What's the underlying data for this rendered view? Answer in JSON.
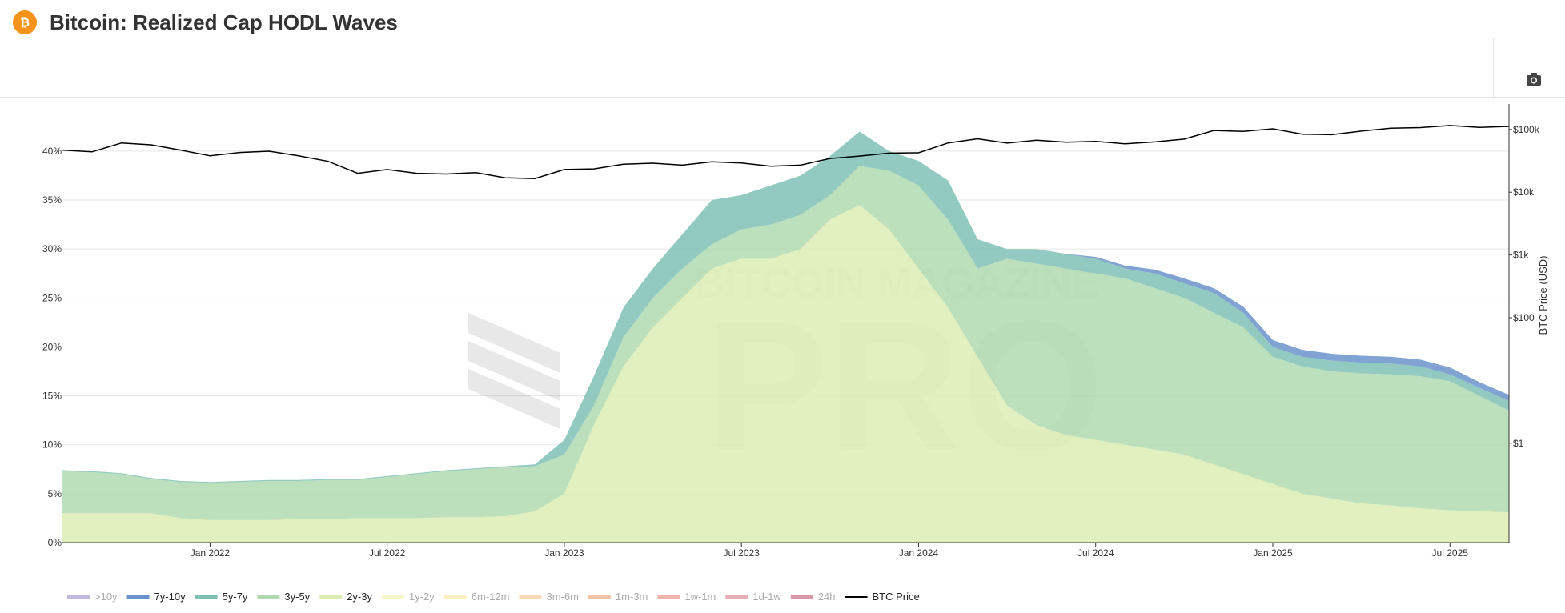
{
  "chart_data": {
    "type": "stacked-area",
    "title": "Bitcoin: Realized Cap HODL Waves",
    "y2_label": "BTC Price (USD)",
    "watermark": [
      "BITCOIN MAGAZINE",
      "PRO"
    ],
    "x": [
      "2021-08",
      "2021-09",
      "2021-10",
      "2021-11",
      "2021-12",
      "2022-01",
      "2022-02",
      "2022-03",
      "2022-04",
      "2022-05",
      "2022-06",
      "2022-07",
      "2022-08",
      "2022-09",
      "2022-10",
      "2022-11",
      "2022-12",
      "2023-01",
      "2023-02",
      "2023-03",
      "2023-04",
      "2023-05",
      "2023-06",
      "2023-07",
      "2023-08",
      "2023-09",
      "2023-10",
      "2023-11",
      "2023-12",
      "2024-01",
      "2024-02",
      "2024-03",
      "2024-04",
      "2024-05",
      "2024-06",
      "2024-07",
      "2024-08",
      "2024-09",
      "2024-10",
      "2024-11",
      "2024-12",
      "2025-01",
      "2025-02",
      "2025-03",
      "2025-04",
      "2025-05",
      "2025-06",
      "2025-07",
      "2025-08",
      "2025-09"
    ],
    "xlim": [
      "2021-08",
      "2025-09"
    ],
    "xticks": [
      {
        "value": "2022-01",
        "label": "Jan 2022"
      },
      {
        "value": "2022-07",
        "label": "Jul 2022"
      },
      {
        "value": "2023-01",
        "label": "Jan 2023"
      },
      {
        "value": "2023-07",
        "label": "Jul 2023"
      },
      {
        "value": "2024-01",
        "label": "Jan 2024"
      },
      {
        "value": "2024-07",
        "label": "Jul 2024"
      },
      {
        "value": "2025-01",
        "label": "Jan 2025"
      },
      {
        "value": "2025-07",
        "label": "Jul 2025"
      }
    ],
    "ylim": [
      0,
      44
    ],
    "yticks": [
      {
        "value": 0,
        "label": "0%"
      },
      {
        "value": 5,
        "label": "5%"
      },
      {
        "value": 10,
        "label": "10%"
      },
      {
        "value": 15,
        "label": "15%"
      },
      {
        "value": 20,
        "label": "20%"
      },
      {
        "value": 25,
        "label": "25%"
      },
      {
        "value": 30,
        "label": "30%"
      },
      {
        "value": 35,
        "label": "35%"
      },
      {
        "value": 40,
        "label": "40%"
      }
    ],
    "y2lim": [
      0.026,
      190000
    ],
    "y2_log": true,
    "y2ticks": [
      {
        "value": 1,
        "label": "$1"
      },
      {
        "value": 100,
        "label": "$100"
      },
      {
        "value": 1000,
        "label": "$1k"
      },
      {
        "value": 10000,
        "label": "$10k"
      },
      {
        "value": 100000,
        "label": "$100k"
      }
    ],
    "grid": true,
    "legend": "bottom",
    "series": [
      {
        "name": ">10y",
        "color": "#c3b9de",
        "visible": false
      },
      {
        "name": "7y-10y",
        "color": "#6a93cb",
        "values": [
          0,
          0,
          0,
          0,
          0,
          0,
          0,
          0,
          0,
          0,
          0,
          0,
          0,
          0,
          0,
          0,
          0,
          0,
          0,
          0,
          0,
          0,
          0,
          0,
          0,
          0,
          0,
          0,
          0,
          0,
          0,
          0,
          0,
          0,
          0,
          0.2,
          0.3,
          0.4,
          0.5,
          0.5,
          0.6,
          0.7,
          0.7,
          0.7,
          0.7,
          0.7,
          0.7,
          0.7,
          0.6,
          0.6
        ]
      },
      {
        "name": "5y-7y",
        "color": "#7fc0b6",
        "values": [
          0.1,
          0.1,
          0.1,
          0.1,
          0.1,
          0.1,
          0.1,
          0.1,
          0.1,
          0.1,
          0.1,
          0.1,
          0.1,
          0.1,
          0.1,
          0.1,
          0.2,
          1.5,
          3,
          3,
          3,
          3.5,
          4.5,
          3.5,
          4,
          4,
          4,
          3.5,
          2,
          2.5,
          4,
          3,
          1,
          1.5,
          1.5,
          1.5,
          1,
          1.5,
          1.5,
          2,
          1.5,
          1,
          1,
          1.1,
          1.1,
          1.1,
          1,
          0.7,
          0.8,
          1
        ]
      },
      {
        "name": "3y-5y",
        "color": "#b0d9b0",
        "values": [
          4.3,
          4.2,
          4,
          3.5,
          3.7,
          3.8,
          3.9,
          4,
          3.9,
          4,
          3.9,
          4.2,
          4.5,
          4.7,
          4.9,
          5,
          4.6,
          4,
          2,
          3,
          3,
          3,
          2.5,
          3,
          3.5,
          3.5,
          2.5,
          4,
          6,
          8.5,
          9,
          9,
          15,
          16.5,
          17,
          17,
          17,
          16.5,
          16,
          15.5,
          15,
          13,
          13,
          13,
          13.3,
          13.4,
          13.5,
          13.2,
          11.8,
          10.4
        ]
      },
      {
        "name": "2y-3y",
        "color": "#dcedb3",
        "values": [
          3,
          3,
          3,
          3,
          2.5,
          2.3,
          2.3,
          2.3,
          2.4,
          2.4,
          2.5,
          2.5,
          2.5,
          2.6,
          2.6,
          2.7,
          3.2,
          5,
          12,
          18,
          22,
          25,
          28,
          29,
          29,
          30,
          33,
          34.5,
          32,
          28,
          24,
          19,
          14,
          12,
          11,
          10.5,
          10,
          9.5,
          9,
          8,
          7,
          6,
          5,
          4.5,
          4,
          3.8,
          3.5,
          3.3,
          3.2,
          3.1
        ]
      },
      {
        "name": "1y-2y",
        "color": "#f6f6c6",
        "visible": false
      },
      {
        "name": "6m-12m",
        "color": "#fbefc2",
        "visible": false
      },
      {
        "name": "3m-6m",
        "color": "#fad8b6",
        "visible": false
      },
      {
        "name": "1m-3m",
        "color": "#f7c3a6",
        "visible": false
      },
      {
        "name": "1w-1m",
        "color": "#f2b5ae",
        "visible": false
      },
      {
        "name": "1d-1w",
        "color": "#e6adb6",
        "visible": false
      },
      {
        "name": "24h",
        "color": "#d99aa8",
        "visible": false
      },
      {
        "name": "BTC Price",
        "color": "#000000",
        "axis": "y2",
        "values": [
          47000,
          44000,
          61000,
          57000,
          47000,
          38000,
          43000,
          45000,
          38000,
          31000,
          20000,
          23000,
          20000,
          19500,
          20500,
          17000,
          16500,
          23000,
          23500,
          28000,
          29000,
          27000,
          30500,
          29200,
          26000,
          27000,
          34500,
          37700,
          42000,
          42500,
          61000,
          71000,
          60600,
          67500,
          62700,
          64600,
          59000,
          63300,
          70200,
          96400,
          93400,
          102400,
          84300,
          82500,
          94200,
          104600,
          107100,
          115700,
          108200,
          112000
        ]
      }
    ]
  }
}
